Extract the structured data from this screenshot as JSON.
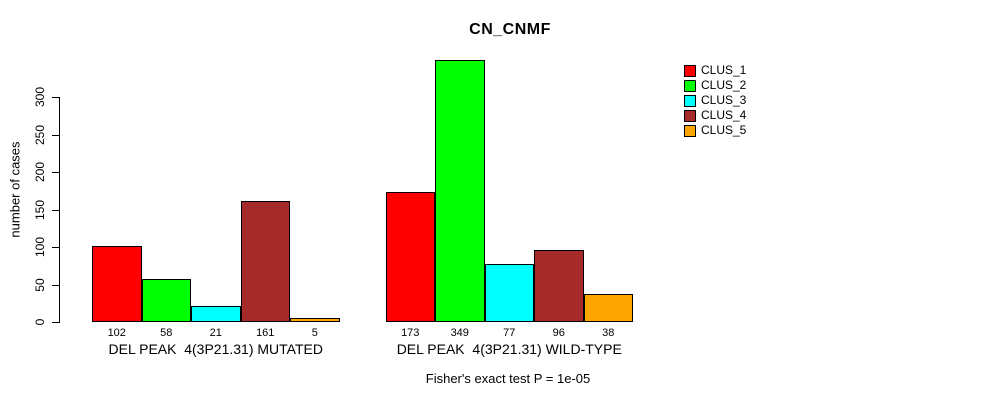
{
  "title": "CN_CNMF",
  "chart_data": {
    "type": "bar",
    "title": "CN_CNMF",
    "xlabel": "",
    "ylabel": "number of cases",
    "ylim": [
      0,
      349
    ],
    "yticks": [
      0,
      50,
      100,
      150,
      200,
      250,
      300
    ],
    "grid": false,
    "legend_position": "right",
    "bar_value_labels": true,
    "categories": [
      "DEL PEAK  4(3P21.31) MUTATED",
      "DEL PEAK  4(3P21.31) WILD-TYPE"
    ],
    "series": [
      {
        "name": "CLUS_1",
        "color": "#FF0000",
        "values": [
          102,
          173
        ]
      },
      {
        "name": "CLUS_2",
        "color": "#00FF00",
        "values": [
          58,
          349
        ]
      },
      {
        "name": "CLUS_3",
        "color": "#00FFFF",
        "values": [
          21,
          77
        ]
      },
      {
        "name": "CLUS_4",
        "color": "#A52A2A",
        "values": [
          161,
          96
        ]
      },
      {
        "name": "CLUS_5",
        "color": "#FFA500",
        "values": [
          5,
          38
        ]
      }
    ],
    "annotation": "Fisher's exact test P = 1e-05"
  }
}
